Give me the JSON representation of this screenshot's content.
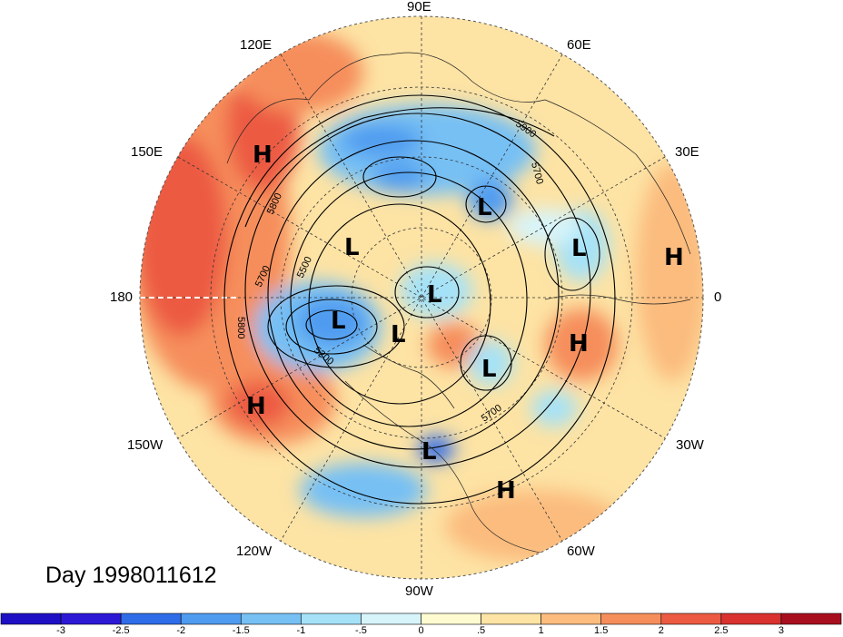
{
  "title": "Day 1998011612",
  "longitude_labels": {
    "lon_90e": "90E",
    "lon_120e": "120E",
    "lon_60e": "60E",
    "lon_150e": "150E",
    "lon_30e": "30E",
    "lon_180": "180",
    "lon_0": "0",
    "lon_150w": "150W",
    "lon_30w": "30W",
    "lon_120w": "120W",
    "lon_60w": "60W",
    "lon_90w": "90W"
  },
  "contour_labels": {
    "c5900": "5900",
    "c5700a": "5700",
    "c5800a": "5800",
    "c5700b": "5700",
    "c5500": "5500",
    "c5800b": "5800",
    "c5200": "5200",
    "c5700c": "5700"
  },
  "pressure_centers": [
    {
      "label": "H",
      "type": "high"
    },
    {
      "label": "H",
      "type": "high"
    },
    {
      "label": "H",
      "type": "high"
    },
    {
      "label": "H",
      "type": "high"
    },
    {
      "label": "H",
      "type": "high"
    },
    {
      "label": "L",
      "type": "low"
    },
    {
      "label": "L",
      "type": "low"
    },
    {
      "label": "L",
      "type": "low"
    },
    {
      "label": "L",
      "type": "low"
    },
    {
      "label": "L",
      "type": "low"
    },
    {
      "label": "L",
      "type": "low"
    },
    {
      "label": "L",
      "type": "low"
    },
    {
      "label": "L",
      "type": "low"
    }
  ],
  "colorbar": {
    "ticks": [
      "-3",
      "-2.5",
      "-2",
      "-1.5",
      "-1",
      "-.5",
      "0",
      ".5",
      "1",
      "1.5",
      "2",
      "2.5",
      "3"
    ],
    "colors": [
      "#2d18d6",
      "#2f6ce8",
      "#4f9bf0",
      "#76c0f4",
      "#a5e2f8",
      "#d7f4fb",
      "#fffbd0",
      "#fde3a4",
      "#fbbc7e",
      "#f68e5b",
      "#ec5a42",
      "#d9322f",
      "#a80f1e"
    ]
  }
}
